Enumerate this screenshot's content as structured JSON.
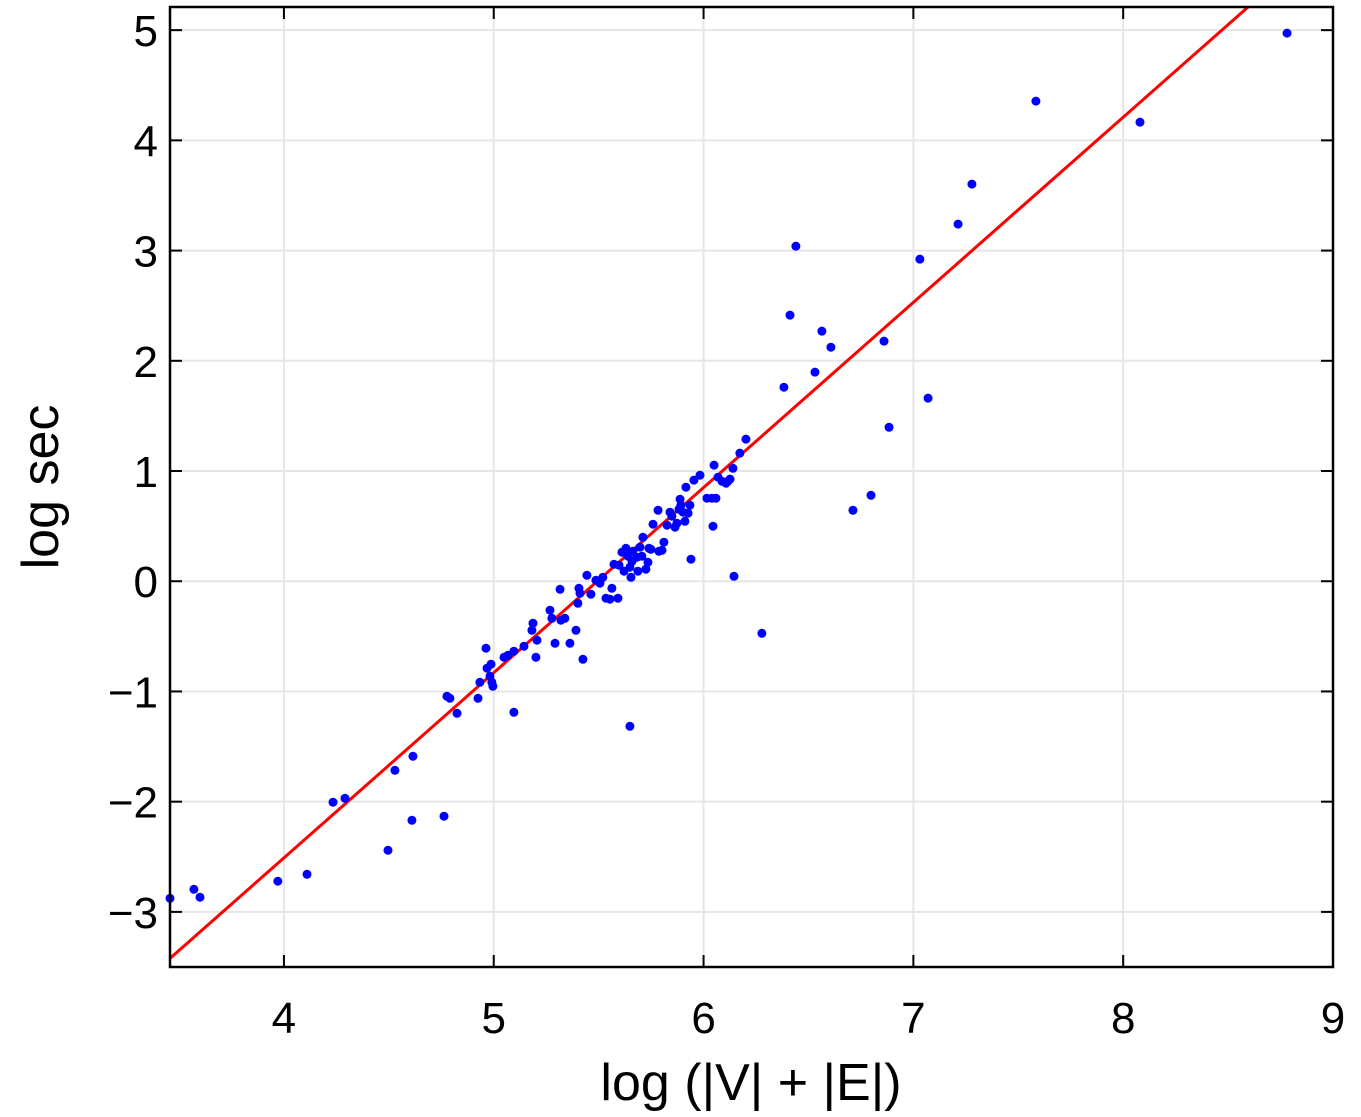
{
  "chart_data": {
    "type": "scatter",
    "title": "",
    "xlabel": "log (|V| + |E|)",
    "ylabel": "log sec",
    "xlim": [
      3.457,
      9
    ],
    "ylim": [
      -3.5,
      5.21
    ],
    "xticks": [
      4,
      5,
      6,
      7,
      8,
      9
    ],
    "yticks": [
      -3,
      -2,
      -1,
      0,
      1,
      2,
      3,
      4,
      5
    ],
    "xtick_labels": [
      "4",
      "5",
      "6",
      "7",
      "8",
      "9"
    ],
    "ytick_labels": [
      "−3",
      "−2",
      "−1",
      "0",
      "1",
      "2",
      "3",
      "4",
      "5"
    ],
    "grid": true,
    "colors": {
      "points": "#0000ff",
      "fit": "#ff0000",
      "grid": "#e6e6e6"
    },
    "fit_line": {
      "slope": 1.68,
      "intercept": -9.23
    },
    "points": [
      [
        3.457,
        -2.877
      ],
      [
        3.571,
        -2.795
      ],
      [
        3.6,
        -2.867
      ],
      [
        3.971,
        -2.722
      ],
      [
        4.11,
        -2.659
      ],
      [
        4.234,
        -2.005
      ],
      [
        4.291,
        -1.969
      ],
      [
        4.529,
        -1.715
      ],
      [
        4.615,
        -1.588
      ],
      [
        4.496,
        -2.441
      ],
      [
        4.61,
        -2.169
      ],
      [
        4.763,
        -2.132
      ],
      [
        4.777,
        -1.044
      ],
      [
        4.791,
        -1.062
      ],
      [
        4.825,
        -1.198
      ],
      [
        4.925,
        -1.062
      ],
      [
        4.934,
        -0.917
      ],
      [
        4.963,
        -0.608
      ],
      [
        4.968,
        -0.789
      ],
      [
        4.982,
        -0.862
      ],
      [
        4.987,
        -0.753
      ],
      [
        4.991,
        -0.917
      ],
      [
        4.996,
        -0.953
      ],
      [
        5.049,
        -0.69
      ],
      [
        5.068,
        -0.672
      ],
      [
        5.096,
        -0.635
      ],
      [
        5.096,
        -1.189
      ],
      [
        5.144,
        -0.59
      ],
      [
        5.201,
        -0.69
      ],
      [
        5.206,
        -0.535
      ],
      [
        5.187,
        -0.381
      ],
      [
        5.182,
        -0.445
      ],
      [
        5.268,
        -0.263
      ],
      [
        5.277,
        -0.336
      ],
      [
        5.292,
        -0.563
      ],
      [
        5.32,
        -0.354
      ],
      [
        5.339,
        -0.336
      ],
      [
        5.363,
        -0.563
      ],
      [
        5.316,
        -0.073
      ],
      [
        5.392,
        -0.445
      ],
      [
        5.401,
        -0.2
      ],
      [
        5.406,
        -0.064
      ],
      [
        5.411,
        -0.109
      ],
      [
        5.425,
        -0.708
      ],
      [
        5.444,
        0.054
      ],
      [
        5.463,
        -0.118
      ],
      [
        5.487,
        0.009
      ],
      [
        5.506,
        -0.018
      ],
      [
        5.52,
        0.036
      ],
      [
        5.535,
        -0.154
      ],
      [
        5.554,
        -0.163
      ],
      [
        5.563,
        -0.064
      ],
      [
        5.573,
        0.154
      ],
      [
        5.592,
        -0.154
      ],
      [
        5.597,
        0.145
      ],
      [
        5.611,
        0.263
      ],
      [
        5.621,
        0.091
      ],
      [
        5.63,
        0.299
      ],
      [
        5.64,
        0.227
      ],
      [
        5.649,
        0.127
      ],
      [
        5.654,
        0.036
      ],
      [
        5.659,
        0.181
      ],
      [
        5.663,
        0.272
      ],
      [
        5.683,
        0.218
      ],
      [
        5.687,
        0.091
      ],
      [
        5.697,
        0.309
      ],
      [
        5.706,
        0.227
      ],
      [
        5.711,
        0.399
      ],
      [
        5.725,
        0.109
      ],
      [
        5.735,
        0.172
      ],
      [
        5.74,
        0.299
      ],
      [
        5.749,
        0.29
      ],
      [
        5.759,
        0.517
      ],
      [
        5.783,
        0.644
      ],
      [
        5.787,
        0.272
      ],
      [
        5.802,
        0.281
      ],
      [
        5.811,
        0.354
      ],
      [
        5.826,
        0.508
      ],
      [
        5.84,
        0.626
      ],
      [
        5.849,
        0.59
      ],
      [
        5.864,
        0.49
      ],
      [
        5.873,
        0.526
      ],
      [
        5.883,
        0.653
      ],
      [
        5.888,
        0.744
      ],
      [
        5.892,
        0.69
      ],
      [
        5.902,
        0.626
      ],
      [
        5.911,
        0.544
      ],
      [
        5.916,
        0.853
      ],
      [
        5.926,
        0.617
      ],
      [
        5.935,
        0.69
      ],
      [
        5.94,
        0.2
      ],
      [
        5.954,
        0.917
      ],
      [
        5.983,
        0.962
      ],
      [
        6.016,
        0.753
      ],
      [
        6.04,
        0.753
      ],
      [
        6.045,
        0.499
      ],
      [
        6.05,
        1.053
      ],
      [
        6.059,
        0.753
      ],
      [
        6.069,
        0.944
      ],
      [
        6.088,
        0.907
      ],
      [
        6.107,
        0.889
      ],
      [
        6.116,
        0.907
      ],
      [
        6.126,
        0.926
      ],
      [
        6.14,
        1.025
      ],
      [
        6.173,
        1.162
      ],
      [
        6.202,
        1.289
      ],
      [
        6.145,
        0.045
      ],
      [
        5.649,
        -1.316
      ],
      [
        6.278,
        -0.472
      ],
      [
        6.383,
        1.76
      ],
      [
        6.412,
        2.414
      ],
      [
        6.44,
        3.04
      ],
      [
        6.531,
        1.897
      ],
      [
        6.564,
        2.269
      ],
      [
        6.607,
        2.123
      ],
      [
        6.712,
        0.644
      ],
      [
        6.798,
        0.78
      ],
      [
        6.86,
        2.178
      ],
      [
        6.884,
        1.397
      ],
      [
        7.031,
        2.922
      ],
      [
        7.07,
        1.661
      ],
      [
        7.213,
        3.24
      ],
      [
        7.279,
        3.603
      ],
      [
        7.584,
        4.356
      ],
      [
        8.08,
        4.165
      ],
      [
        8.781,
        4.973
      ]
    ]
  }
}
